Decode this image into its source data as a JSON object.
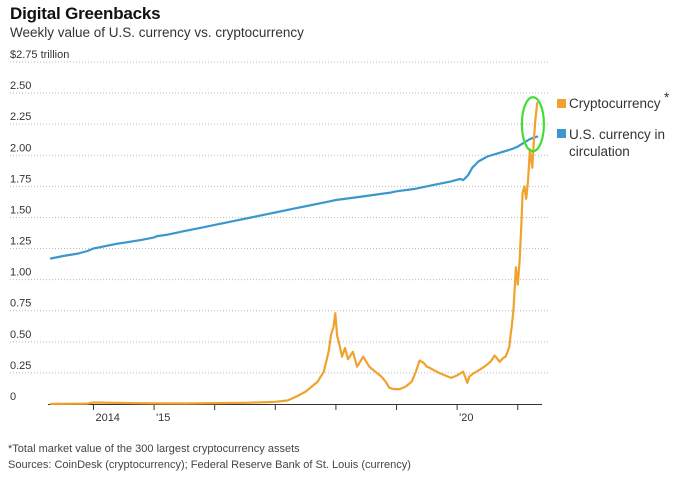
{
  "title": "Digital Greenbacks",
  "subtitle": "Weekly value of U.S. currency vs. cryptocurrency",
  "footnote": "*Total market value of the 300 largest cryptocurrency assets",
  "sources": "Sources: CoinDesk (cryptocurrency); Federal Reserve Bank of St. Louis (currency)",
  "colors": {
    "crypto": "#f0a22e",
    "currency": "#3b97cc",
    "highlight": "#44dd33",
    "grid": "#bbbbbb",
    "axis": "#333333"
  },
  "chart_data": {
    "type": "line",
    "title": "Digital Greenbacks",
    "ylabel": "$2.75 trillion",
    "ylim": [
      0,
      2.75
    ],
    "xlim": [
      2013.25,
      2021.4
    ],
    "y_ticks": [
      {
        "value": 0,
        "label": "0"
      },
      {
        "value": 0.25,
        "label": "0.25"
      },
      {
        "value": 0.5,
        "label": "0.50"
      },
      {
        "value": 0.75,
        "label": "0.75"
      },
      {
        "value": 1.0,
        "label": "1.00"
      },
      {
        "value": 1.25,
        "label": "1.25"
      },
      {
        "value": 1.5,
        "label": "1.50"
      },
      {
        "value": 1.75,
        "label": "1.75"
      },
      {
        "value": 2.0,
        "label": "2.00"
      },
      {
        "value": 2.25,
        "label": "2.25"
      },
      {
        "value": 2.5,
        "label": "2.50"
      },
      {
        "value": 2.75,
        "label": "$2.75 trillion"
      }
    ],
    "x_tick_labels": [
      {
        "value": 2014,
        "label": "2014"
      },
      {
        "value": 2015,
        "label": "'15"
      },
      {
        "value": 2020,
        "label": "'20"
      }
    ],
    "x_tick_marks": [
      2014,
      2015,
      2016,
      2017,
      2018,
      2019,
      2020,
      2021
    ],
    "grid": true,
    "legend_position": "right",
    "series": [
      {
        "name": "Cryptocurrency",
        "name_marker": "*",
        "key": "crypto",
        "x": [
          2013.3,
          2013.9,
          2014.0,
          2014.5,
          2015.0,
          2015.5,
          2016.0,
          2016.5,
          2016.9,
          2017.0,
          2017.2,
          2017.35,
          2017.5,
          2017.6,
          2017.7,
          2017.8,
          2017.88,
          2017.92,
          2017.96,
          2017.99,
          2018.02,
          2018.06,
          2018.1,
          2018.15,
          2018.2,
          2018.28,
          2018.35,
          2018.45,
          2018.55,
          2018.65,
          2018.75,
          2018.82,
          2018.88,
          2018.95,
          2019.05,
          2019.15,
          2019.25,
          2019.32,
          2019.38,
          2019.45,
          2019.5,
          2019.55,
          2019.62,
          2019.7,
          2019.8,
          2019.9,
          2020.0,
          2020.1,
          2020.17,
          2020.2,
          2020.25,
          2020.35,
          2020.45,
          2020.55,
          2020.62,
          2020.7,
          2020.76,
          2020.8,
          2020.83,
          2020.86,
          2020.88,
          2020.9,
          2020.93,
          2020.97,
          2021.0,
          2021.03,
          2021.06,
          2021.08,
          2021.11,
          2021.14,
          2021.17,
          2021.2,
          2021.24,
          2021.27,
          2021.29,
          2021.32
        ],
        "values": [
          0.001,
          0.003,
          0.012,
          0.008,
          0.005,
          0.004,
          0.007,
          0.01,
          0.015,
          0.018,
          0.028,
          0.06,
          0.1,
          0.14,
          0.18,
          0.26,
          0.42,
          0.56,
          0.62,
          0.73,
          0.55,
          0.47,
          0.38,
          0.45,
          0.36,
          0.42,
          0.3,
          0.38,
          0.3,
          0.26,
          0.22,
          0.18,
          0.13,
          0.12,
          0.12,
          0.14,
          0.18,
          0.26,
          0.35,
          0.33,
          0.3,
          0.29,
          0.27,
          0.25,
          0.23,
          0.21,
          0.23,
          0.26,
          0.17,
          0.22,
          0.24,
          0.27,
          0.3,
          0.34,
          0.39,
          0.34,
          0.37,
          0.38,
          0.42,
          0.46,
          0.55,
          0.62,
          0.76,
          1.1,
          0.96,
          1.15,
          1.45,
          1.7,
          1.75,
          1.65,
          1.8,
          2.05,
          1.9,
          2.15,
          2.28,
          2.42
        ]
      },
      {
        "name": "U.S. currency in circulation",
        "key": "currency",
        "x": [
          2013.3,
          2013.5,
          2013.75,
          2013.9,
          2014.0,
          2014.2,
          2014.4,
          2014.55,
          2014.8,
          2015.0,
          2015.05,
          2015.2,
          2015.5,
          2015.8,
          2016.0,
          2016.3,
          2016.6,
          2016.9,
          2017.0,
          2017.3,
          2017.6,
          2017.9,
          2018.0,
          2018.3,
          2018.6,
          2018.9,
          2019.0,
          2019.3,
          2019.6,
          2019.9,
          2019.98,
          2020.05,
          2020.1,
          2020.18,
          2020.25,
          2020.35,
          2020.5,
          2020.7,
          2020.9,
          2021.0,
          2021.1,
          2021.2,
          2021.32
        ],
        "values": [
          1.17,
          1.19,
          1.21,
          1.23,
          1.25,
          1.27,
          1.29,
          1.3,
          1.32,
          1.34,
          1.35,
          1.36,
          1.39,
          1.42,
          1.44,
          1.47,
          1.5,
          1.53,
          1.54,
          1.57,
          1.6,
          1.63,
          1.64,
          1.66,
          1.68,
          1.7,
          1.71,
          1.73,
          1.76,
          1.79,
          1.8,
          1.81,
          1.8,
          1.84,
          1.9,
          1.95,
          1.99,
          2.02,
          2.05,
          2.07,
          2.1,
          2.13,
          2.15
        ]
      }
    ],
    "annotations": [
      {
        "type": "ellipse",
        "note": "green circle around crossover",
        "x": 2021.25,
        "y": 2.25
      }
    ]
  }
}
